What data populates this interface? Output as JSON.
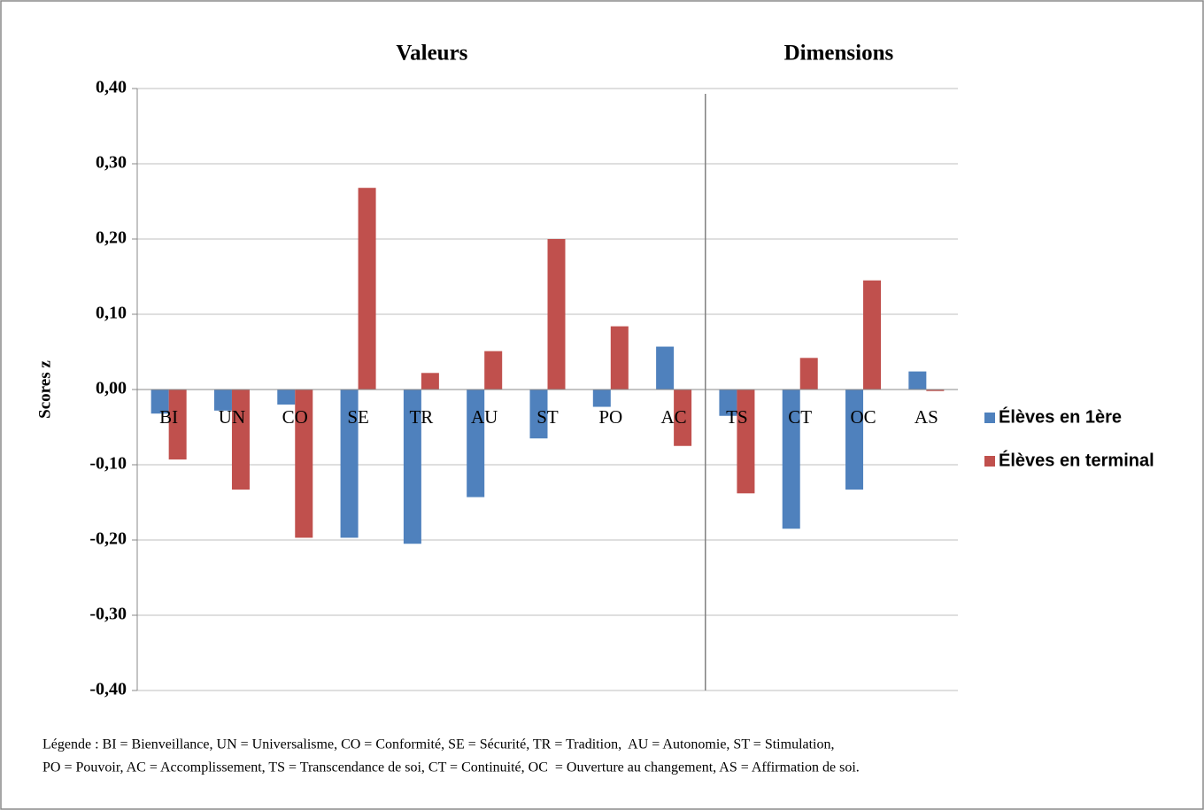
{
  "chart_data": {
    "type": "bar",
    "group_labels": [
      "Valeurs",
      "Dimensions"
    ],
    "ylabel": "Scores z",
    "categories": [
      "BI",
      "UN",
      "CO",
      "SE",
      "TR",
      "AU",
      "ST",
      "PO",
      "AC",
      "TS",
      "CT",
      "OC",
      "AS"
    ],
    "series": [
      {
        "name": "Élèves en 1ère",
        "color": "#4f81bd",
        "values": [
          -0.032,
          -0.028,
          -0.02,
          -0.197,
          -0.205,
          -0.143,
          -0.065,
          -0.023,
          0.057,
          -0.035,
          -0.185,
          -0.133,
          0.024
        ]
      },
      {
        "name": "Élèves en terminal",
        "color": "#c0504d",
        "values": [
          -0.093,
          -0.133,
          -0.197,
          0.268,
          0.022,
          0.051,
          0.2,
          0.084,
          -0.075,
          -0.138,
          0.042,
          0.145,
          -0.002
        ]
      }
    ],
    "ylim": [
      -0.4,
      0.4
    ],
    "yticks": [
      {
        "value": -0.4,
        "label": "-0,40"
      },
      {
        "value": -0.3,
        "label": "-0,30"
      },
      {
        "value": -0.2,
        "label": "-0,20"
      },
      {
        "value": -0.1,
        "label": "-0,10"
      },
      {
        "value": 0,
        "label": "0,00"
      },
      {
        "value": 0.1,
        "label": "0,10"
      },
      {
        "value": 0.2,
        "label": "0,20"
      },
      {
        "value": 0.3,
        "label": "0,30"
      },
      {
        "value": 0.4,
        "label": "0,40"
      }
    ],
    "grid": true,
    "legend": "right",
    "notes": [
      "Légende : BI = Bienveillance, UN = Universalisme, CO = Conformité, SE = Sécurité, TR = Tradition,  AU = Autonomie, ST = Stimulation,",
      "PO = Pouvoir, AC = Accomplissement, TS = Transcendance de soi, CT = Continuité, OC  = Ouverture au changement, AS = Affirmation de soi."
    ]
  }
}
